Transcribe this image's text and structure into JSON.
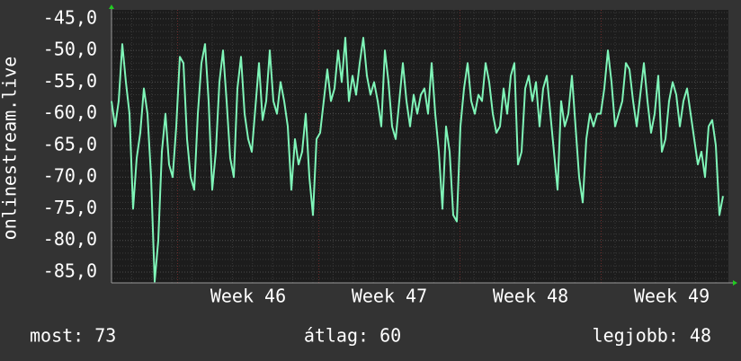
{
  "chart_data": {
    "type": "line",
    "ylabel": "onlinestream.live",
    "series": [
      {
        "name": "onlinestream.live",
        "color": "#7ff5b8",
        "values": [
          -58,
          -62,
          -58,
          -49,
          -55,
          -60,
          -75,
          -67,
          -63,
          -56,
          -60,
          -70,
          -86.5,
          -80,
          -66,
          -60,
          -68,
          -70,
          -62,
          -51,
          -52,
          -64,
          -70,
          -72,
          -60,
          -52,
          -49,
          -58,
          -72,
          -66,
          -55,
          -50,
          -58,
          -67,
          -70,
          -56,
          -51,
          -60,
          -64,
          -66,
          -59,
          -52,
          -61,
          -58,
          -50,
          -58,
          -60,
          -55,
          -58,
          -62,
          -72,
          -64,
          -68,
          -66,
          -60,
          -70,
          -76,
          -64,
          -63,
          -58,
          -53,
          -58,
          -56,
          -50,
          -55,
          -48,
          -58,
          -54,
          -57,
          -52,
          -48,
          -54,
          -57,
          -55,
          -58,
          -62,
          -50,
          -55,
          -62,
          -64,
          -58,
          -52,
          -58,
          -62,
          -57,
          -60,
          -57,
          -56,
          -60,
          -52,
          -60,
          -66,
          -75,
          -62,
          -66,
          -76,
          -77,
          -62,
          -56,
          -52,
          -58,
          -60,
          -57,
          -58,
          -52,
          -55,
          -60,
          -63,
          -62,
          -56,
          -60,
          -54,
          -52,
          -68,
          -66,
          -56,
          -54,
          -58,
          -55,
          -62,
          -56,
          -54,
          -60,
          -66,
          -72,
          -58,
          -62,
          -60,
          -54,
          -62,
          -70,
          -74,
          -64,
          -60,
          -62,
          -60,
          -60,
          -56,
          -50,
          -55,
          -62,
          -60,
          -58,
          -52,
          -53,
          -58,
          -62,
          -57,
          -52,
          -58,
          -63,
          -60,
          -54,
          -66,
          -64,
          -58,
          -55,
          -57,
          -62,
          -58,
          -56,
          -60,
          -64,
          -68,
          -66,
          -70,
          -62,
          -61,
          -65,
          -76,
          -73
        ]
      }
    ],
    "xlim": [
      0,
      171.5
    ],
    "xticks": [
      {
        "value": 38,
        "label": "Week 46"
      },
      {
        "value": 77.25,
        "label": "Week 47"
      },
      {
        "value": 116.5,
        "label": "Week 48"
      },
      {
        "value": 155.75,
        "label": "Week 49"
      }
    ],
    "ylim": [
      -86.7,
      -43.6
    ],
    "yticks": [
      {
        "value": -45,
        "label": "-45,0"
      },
      {
        "value": -50,
        "label": "-50,0"
      },
      {
        "value": -55,
        "label": "-55,0"
      },
      {
        "value": -60,
        "label": "-60,0"
      },
      {
        "value": -65,
        "label": "-65,0"
      },
      {
        "value": -70,
        "label": "-70,0"
      },
      {
        "value": -75,
        "label": "-75,0"
      },
      {
        "value": -80,
        "label": "-80,0"
      },
      {
        "value": -85,
        "label": "-85,0"
      }
    ],
    "grid": true,
    "footer": [
      "most: 73",
      "átlag: 60",
      "legjobb: 48"
    ]
  }
}
